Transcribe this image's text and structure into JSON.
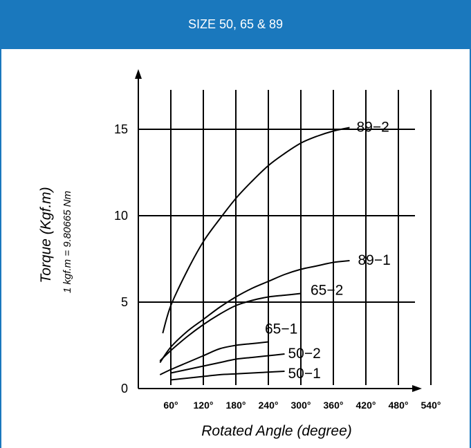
{
  "header": {
    "title": "SIZE 50, 65 & 89"
  },
  "colors": {
    "header_bg": "#1a78bd",
    "header_text": "#ffffff",
    "plot": "#000000"
  },
  "chart_data": {
    "type": "line",
    "xlabel": "Rotated Angle (degree)",
    "ylabel": "Torque  (Kgf.m)",
    "ylabel_note": "1 kgf.m = 9.80665 Nm",
    "xlim": [
      0,
      600
    ],
    "ylim": [
      0,
      17
    ],
    "x_ticks": [
      {
        "value": 60,
        "label": "60°"
      },
      {
        "value": 120,
        "label": "120°"
      },
      {
        "value": 180,
        "label": "180°"
      },
      {
        "value": 240,
        "label": "240°"
      },
      {
        "value": 300,
        "label": "300°"
      },
      {
        "value": 360,
        "label": "360°"
      },
      {
        "value": 420,
        "label": "420°"
      },
      {
        "value": 480,
        "label": "480°"
      },
      {
        "value": 540,
        "label": "540°"
      }
    ],
    "y_ticks": [
      {
        "value": 0,
        "label": "0"
      },
      {
        "value": 5,
        "label": "5"
      },
      {
        "value": 10,
        "label": "10"
      },
      {
        "value": 15,
        "label": "15"
      }
    ],
    "grid": true,
    "series": [
      {
        "name": "89-2",
        "x": [
          45,
          60,
          90,
          120,
          150,
          180,
          210,
          240,
          270,
          300,
          330,
          360,
          390
        ],
        "y": [
          3.2,
          4.8,
          6.8,
          8.5,
          9.8,
          11.0,
          12.0,
          12.9,
          13.6,
          14.2,
          14.6,
          14.9,
          15.1
        ]
      },
      {
        "name": "89-1",
        "x": [
          40,
          60,
          90,
          120,
          150,
          180,
          210,
          240,
          270,
          300,
          330,
          360,
          390
        ],
        "y": [
          1.5,
          2.4,
          3.3,
          4.0,
          4.7,
          5.3,
          5.8,
          6.2,
          6.6,
          6.9,
          7.1,
          7.3,
          7.4
        ]
      },
      {
        "name": "65-2",
        "x": [
          40,
          60,
          90,
          120,
          150,
          180,
          210,
          240,
          270,
          300
        ],
        "y": [
          1.6,
          2.2,
          3.0,
          3.7,
          4.3,
          4.8,
          5.1,
          5.3,
          5.4,
          5.5
        ]
      },
      {
        "name": "65-1",
        "x": [
          40,
          60,
          90,
          120,
          150,
          180,
          210,
          240
        ],
        "y": [
          0.8,
          1.1,
          1.5,
          1.9,
          2.3,
          2.5,
          2.6,
          2.7
        ]
      },
      {
        "name": "50-2",
        "x": [
          60,
          90,
          120,
          150,
          180,
          210,
          240,
          270
        ],
        "y": [
          0.9,
          1.1,
          1.3,
          1.5,
          1.7,
          1.8,
          1.9,
          2.0
        ]
      },
      {
        "name": "50-1",
        "x": [
          60,
          90,
          120,
          150,
          180,
          210,
          240,
          270
        ],
        "y": [
          0.5,
          0.6,
          0.7,
          0.8,
          0.85,
          0.9,
          0.95,
          1.0
        ]
      }
    ],
    "curve_labels": [
      {
        "series": "89-2",
        "text": "89−2"
      },
      {
        "series": "89-1",
        "text": "89−1"
      },
      {
        "series": "65-2",
        "text": "65−2"
      },
      {
        "series": "65-1",
        "text": "65−1"
      },
      {
        "series": "50-2",
        "text": "50−2"
      },
      {
        "series": "50-1",
        "text": "50−1"
      }
    ]
  }
}
